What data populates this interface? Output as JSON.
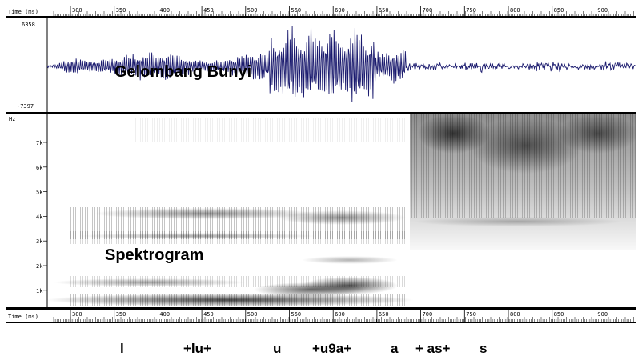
{
  "ruler": {
    "label": "Time (ms)",
    "ticks": [
      "300",
      "350",
      "400",
      "450",
      "500",
      "550",
      "600",
      "650",
      "700",
      "750",
      "800",
      "850",
      "900"
    ]
  },
  "waveform": {
    "overlay_label": "Gelombang Bunyi",
    "y_max_label": "6358",
    "y_min_label": "-7397",
    "color": "#1a1a6e"
  },
  "spectrogram": {
    "overlay_label": "Spektrogram",
    "unit_label": "Hz",
    "freq_ticks": [
      "7k",
      "6k",
      "5k",
      "4k",
      "3k",
      "2k",
      "1k"
    ]
  },
  "phonemes": [
    "l",
    "+lu+",
    "u",
    "+u9a+",
    "a",
    "+ as+",
    "s"
  ]
}
